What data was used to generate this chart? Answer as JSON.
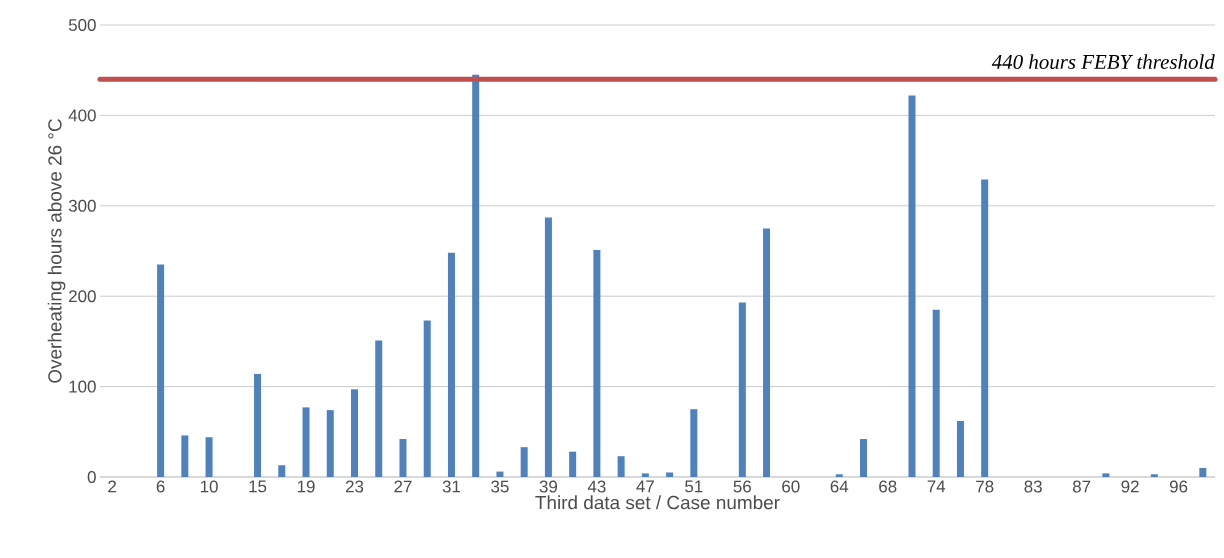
{
  "chart_data": {
    "type": "bar",
    "xlabel": "Third data set / Case number",
    "ylabel": "Overheating hours above 26 °C",
    "categories": [
      "2",
      null,
      "6",
      null,
      "10",
      null,
      "15",
      null,
      "19",
      null,
      "23",
      null,
      "27",
      null,
      "31",
      null,
      "35",
      null,
      "39",
      null,
      "43",
      null,
      "47",
      null,
      "51",
      null,
      "56",
      null,
      "60",
      null,
      "64",
      null,
      "68",
      null,
      "74",
      null,
      "78",
      null,
      "83",
      null,
      "87",
      null,
      "92",
      null,
      "96",
      null
    ],
    "values": [
      0,
      0,
      235,
      46,
      44,
      0,
      114,
      13,
      77,
      74,
      97,
      151,
      42,
      173,
      248,
      445,
      6,
      33,
      287,
      28,
      251,
      23,
      4,
      5,
      75,
      0,
      193,
      275,
      0,
      0,
      3,
      42,
      0,
      422,
      185,
      62,
      329,
      0,
      0,
      0,
      0,
      4,
      0,
      3,
      0,
      10
    ],
    "color": "#4f81bd",
    "ylim": [
      0,
      500
    ],
    "yticks": [
      0,
      100,
      200,
      300,
      400,
      500
    ],
    "grid": "y",
    "ref_lines": [
      {
        "axis": "y",
        "value": 440,
        "label": "440 hours FEBY threshold",
        "color": "#c0504d"
      }
    ]
  }
}
